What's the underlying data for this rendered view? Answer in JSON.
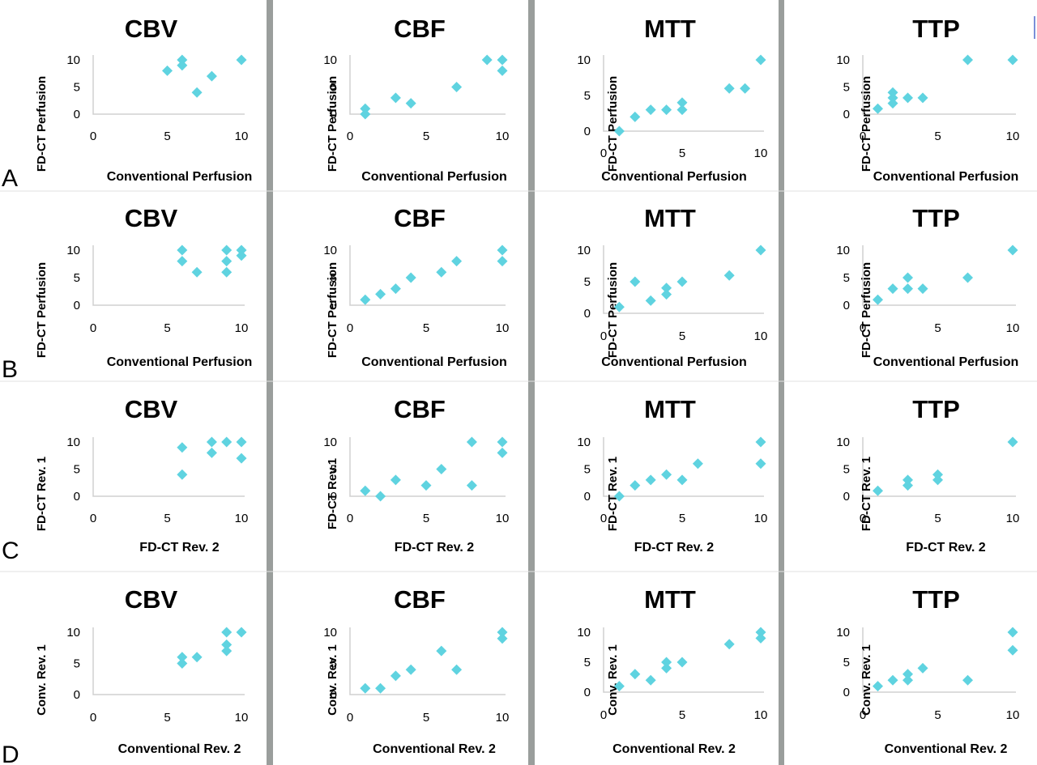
{
  "panel_labels": [
    "A",
    "B",
    "C",
    "D"
  ],
  "colors": {
    "marker": "#5fd3e0",
    "separator": "#9a9e9c",
    "axis": "#d0d0d0"
  },
  "chart_data": [
    {
      "type": "scatter",
      "row": "A",
      "title": "CBV",
      "xlabel": "Conventional Perfusion",
      "ylabel": "FD-CT Perfusion",
      "xlim": [
        0,
        10
      ],
      "ylim": [
        0,
        10
      ],
      "xticks": [
        0,
        5,
        10
      ],
      "yticks": [
        0,
        5,
        10
      ],
      "points": [
        [
          5,
          8
        ],
        [
          6,
          10
        ],
        [
          6,
          9
        ],
        [
          7,
          4
        ],
        [
          8,
          7
        ],
        [
          10,
          10
        ]
      ]
    },
    {
      "type": "scatter",
      "row": "A",
      "title": "CBF",
      "xlabel": "Conventional Perfusion",
      "ylabel": "FD-CT Perfusion",
      "xlim": [
        0,
        10
      ],
      "ylim": [
        0,
        10
      ],
      "xticks": [
        0,
        5,
        10
      ],
      "yticks": [
        0,
        5,
        10
      ],
      "points": [
        [
          1,
          1
        ],
        [
          1,
          0
        ],
        [
          3,
          3
        ],
        [
          4,
          2
        ],
        [
          7,
          5
        ],
        [
          9,
          10
        ],
        [
          10,
          10
        ],
        [
          10,
          8
        ]
      ]
    },
    {
      "type": "scatter",
      "row": "A",
      "title": "MTT",
      "xlabel": "Conventional Perfusion",
      "ylabel": "FD-CT Perfusion",
      "xlim": [
        0,
        10
      ],
      "ylim": [
        0,
        10
      ],
      "xticks": [
        0,
        5,
        10
      ],
      "yticks": [
        0,
        5,
        10
      ],
      "points": [
        [
          1,
          0
        ],
        [
          2,
          2
        ],
        [
          3,
          3
        ],
        [
          4,
          3
        ],
        [
          5,
          4
        ],
        [
          5,
          3
        ],
        [
          8,
          6
        ],
        [
          9,
          6
        ],
        [
          10,
          10
        ]
      ]
    },
    {
      "type": "scatter",
      "row": "A",
      "title": "TTP",
      "xlabel": "Conventional Perfusion",
      "ylabel": "FD-CT Perfusion",
      "xlim": [
        0,
        10
      ],
      "ylim": [
        0,
        10
      ],
      "xticks": [
        0,
        5,
        10
      ],
      "yticks": [
        0,
        5,
        10
      ],
      "points": [
        [
          1,
          1
        ],
        [
          2,
          4
        ],
        [
          2,
          3
        ],
        [
          2,
          2
        ],
        [
          3,
          3
        ],
        [
          4,
          3
        ],
        [
          7,
          10
        ],
        [
          10,
          10
        ]
      ]
    },
    {
      "type": "scatter",
      "row": "B",
      "title": "CBV",
      "xlabel": "Conventional Perfusion",
      "ylabel": "FD-CT Perfusion",
      "xlim": [
        0,
        10
      ],
      "ylim": [
        0,
        10
      ],
      "xticks": [
        0,
        5,
        10
      ],
      "yticks": [
        0,
        5,
        10
      ],
      "points": [
        [
          6,
          10
        ],
        [
          6,
          8
        ],
        [
          7,
          6
        ],
        [
          9,
          10
        ],
        [
          9,
          8
        ],
        [
          9,
          6
        ],
        [
          10,
          10
        ],
        [
          10,
          9
        ]
      ]
    },
    {
      "type": "scatter",
      "row": "B",
      "title": "CBF",
      "xlabel": "Conventional Perfusion",
      "ylabel": "FD-CT Perfusion",
      "xlim": [
        0,
        10
      ],
      "ylim": [
        0,
        10
      ],
      "xticks": [
        0,
        5,
        10
      ],
      "yticks": [
        0,
        5,
        10
      ],
      "points": [
        [
          1,
          1
        ],
        [
          2,
          2
        ],
        [
          3,
          3
        ],
        [
          4,
          5
        ],
        [
          6,
          6
        ],
        [
          7,
          8
        ],
        [
          10,
          10
        ],
        [
          10,
          8
        ]
      ]
    },
    {
      "type": "scatter",
      "row": "B",
      "title": "MTT",
      "xlabel": "Conventional Perfusion",
      "ylabel": "FD-CT Perfusion",
      "xlim": [
        0,
        10
      ],
      "ylim": [
        0,
        10
      ],
      "xticks": [
        0,
        5,
        10
      ],
      "yticks": [
        0,
        5,
        10
      ],
      "points": [
        [
          1,
          1
        ],
        [
          2,
          5
        ],
        [
          3,
          2
        ],
        [
          4,
          4
        ],
        [
          4,
          3
        ],
        [
          5,
          5
        ],
        [
          8,
          6
        ],
        [
          10,
          10
        ]
      ]
    },
    {
      "type": "scatter",
      "row": "B",
      "title": "TTP",
      "xlabel": "Conventional Perfusion",
      "ylabel": "FD-CT Perfusion",
      "xlim": [
        0,
        10
      ],
      "ylim": [
        0,
        10
      ],
      "xticks": [
        0,
        5,
        10
      ],
      "yticks": [
        0,
        5,
        10
      ],
      "points": [
        [
          1,
          1
        ],
        [
          2,
          3
        ],
        [
          3,
          5
        ],
        [
          3,
          3
        ],
        [
          4,
          3
        ],
        [
          7,
          5
        ],
        [
          10,
          10
        ]
      ]
    },
    {
      "type": "scatter",
      "row": "C",
      "title": "CBV",
      "xlabel": "FD-CT Rev. 2",
      "ylabel": "FD-CT Rev. 1",
      "xlim": [
        0,
        10
      ],
      "ylim": [
        0,
        10
      ],
      "xticks": [
        0,
        5,
        10
      ],
      "yticks": [
        0,
        5,
        10
      ],
      "points": [
        [
          6,
          9
        ],
        [
          6,
          4
        ],
        [
          8,
          10
        ],
        [
          8,
          8
        ],
        [
          9,
          10
        ],
        [
          10,
          10
        ],
        [
          10,
          7
        ]
      ]
    },
    {
      "type": "scatter",
      "row": "C",
      "title": "CBF",
      "xlabel": "FD-CT Rev. 2",
      "ylabel": "FD-CT Rev.1",
      "xlim": [
        0,
        10
      ],
      "ylim": [
        0,
        10
      ],
      "xticks": [
        0,
        5,
        10
      ],
      "yticks": [
        0,
        5,
        10
      ],
      "points": [
        [
          1,
          1
        ],
        [
          2,
          0
        ],
        [
          3,
          3
        ],
        [
          5,
          2
        ],
        [
          6,
          5
        ],
        [
          8,
          10
        ],
        [
          8,
          2
        ],
        [
          10,
          10
        ],
        [
          10,
          8
        ]
      ]
    },
    {
      "type": "scatter",
      "row": "C",
      "title": "MTT",
      "xlabel": "FD-CT Rev. 2",
      "ylabel": "FD-CT Rev. 1",
      "xlim": [
        0,
        10
      ],
      "ylim": [
        0,
        10
      ],
      "xticks": [
        0,
        5,
        10
      ],
      "yticks": [
        0,
        5,
        10
      ],
      "points": [
        [
          1,
          0
        ],
        [
          2,
          2
        ],
        [
          3,
          3
        ],
        [
          4,
          4
        ],
        [
          5,
          3
        ],
        [
          6,
          6
        ],
        [
          10,
          10
        ],
        [
          10,
          6
        ]
      ]
    },
    {
      "type": "scatter",
      "row": "C",
      "title": "TTP",
      "xlabel": "FD-CT Rev. 2",
      "ylabel": "FD-CT Rev. 1",
      "xlim": [
        0,
        10
      ],
      "ylim": [
        0,
        10
      ],
      "xticks": [
        0,
        5,
        10
      ],
      "yticks": [
        0,
        5,
        10
      ],
      "points": [
        [
          1,
          1
        ],
        [
          3,
          3
        ],
        [
          3,
          2
        ],
        [
          5,
          4
        ],
        [
          5,
          3
        ],
        [
          10,
          10
        ]
      ]
    },
    {
      "type": "scatter",
      "row": "D",
      "title": "CBV",
      "xlabel": "Conventional Rev. 2",
      "ylabel": "Conv. Rev. 1",
      "xlim": [
        0,
        10
      ],
      "ylim": [
        0,
        10
      ],
      "xticks": [
        0,
        5,
        10
      ],
      "yticks": [
        0,
        5,
        10
      ],
      "points": [
        [
          6,
          6
        ],
        [
          6,
          5
        ],
        [
          7,
          6
        ],
        [
          9,
          10
        ],
        [
          9,
          8
        ],
        [
          9,
          7
        ],
        [
          10,
          10
        ]
      ]
    },
    {
      "type": "scatter",
      "row": "D",
      "title": "CBF",
      "xlabel": "Conventional Rev. 2",
      "ylabel": "Conv. Rev. 1",
      "xlim": [
        0,
        10
      ],
      "ylim": [
        0,
        10
      ],
      "xticks": [
        0,
        5,
        10
      ],
      "yticks": [
        0,
        5,
        10
      ],
      "points": [
        [
          1,
          1
        ],
        [
          2,
          1
        ],
        [
          3,
          3
        ],
        [
          4,
          4
        ],
        [
          6,
          7
        ],
        [
          7,
          4
        ],
        [
          10,
          10
        ],
        [
          10,
          9
        ]
      ]
    },
    {
      "type": "scatter",
      "row": "D",
      "title": "MTT",
      "xlabel": "Conventional Rev. 2",
      "ylabel": "Conv. Rev. 1",
      "xlim": [
        0,
        10
      ],
      "ylim": [
        0,
        10
      ],
      "xticks": [
        0,
        5,
        10
      ],
      "yticks": [
        0,
        5,
        10
      ],
      "points": [
        [
          1,
          1
        ],
        [
          2,
          3
        ],
        [
          3,
          2
        ],
        [
          4,
          5
        ],
        [
          4,
          4
        ],
        [
          5,
          5
        ],
        [
          8,
          8
        ],
        [
          10,
          10
        ],
        [
          10,
          9
        ]
      ]
    },
    {
      "type": "scatter",
      "row": "D",
      "title": "TTP",
      "xlabel": "Conventional Rev. 2",
      "ylabel": "Conv. Rev. 1",
      "xlim": [
        0,
        10
      ],
      "ylim": [
        0,
        10
      ],
      "xticks": [
        0,
        5,
        10
      ],
      "yticks": [
        0,
        5,
        10
      ],
      "points": [
        [
          1,
          1
        ],
        [
          2,
          2
        ],
        [
          3,
          3
        ],
        [
          3,
          2
        ],
        [
          4,
          4
        ],
        [
          7,
          2
        ],
        [
          10,
          10
        ],
        [
          10,
          7
        ]
      ]
    }
  ]
}
